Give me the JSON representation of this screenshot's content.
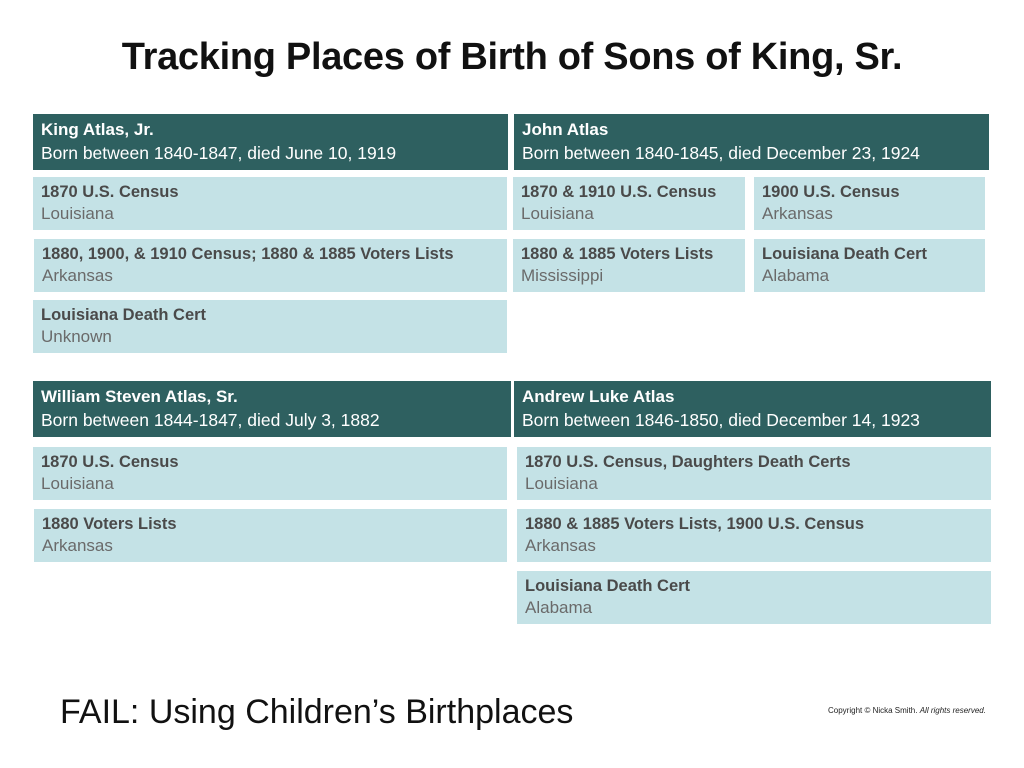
{
  "title": "Tracking Places of Birth of Sons of King, Sr.",
  "sons": [
    {
      "name": "King Atlas, Jr.",
      "born": "Born between 1840-1847, died June 10, 1919",
      "sources": [
        {
          "title": "1870 U.S. Census",
          "place": "Louisiana"
        },
        {
          "title": "1880, 1900, & 1910 Census; 1880 & 1885 Voters Lists",
          "place": "Arkansas"
        },
        {
          "title": "Louisiana Death Cert",
          "place": "Unknown"
        }
      ]
    },
    {
      "name": "John Atlas",
      "born": "Born between 1840-1845, died December 23, 1924",
      "sources": [
        {
          "title": "1870 & 1910 U.S. Census",
          "place": "Louisiana"
        },
        {
          "title": "1900 U.S. Census",
          "place": "Arkansas"
        },
        {
          "title": "1880 & 1885 Voters Lists",
          "place": "Mississippi"
        },
        {
          "title": "Louisiana Death Cert",
          "place": "Alabama"
        }
      ]
    },
    {
      "name": "William Steven Atlas, Sr.",
      "born": "Born between 1844-1847, died July 3, 1882",
      "sources": [
        {
          "title": "1870 U.S. Census",
          "place": "Louisiana"
        },
        {
          "title": "1880 Voters Lists",
          "place": "Arkansas"
        }
      ]
    },
    {
      "name": "Andrew Luke Atlas",
      "born": "Born between 1846-1850, died December 14, 1923",
      "sources": [
        {
          "title": "1870 U.S. Census, Daughters Death Certs",
          "place": "Louisiana"
        },
        {
          "title": "1880 & 1885 Voters Lists, 1900 U.S. Census",
          "place": "Arkansas"
        },
        {
          "title": "Louisiana Death Cert",
          "place": "Alabama"
        }
      ]
    }
  ],
  "footer": {
    "fail_text": "FAIL: Using Children’s Birthplaces",
    "copyright": "Copyright © Nicka Smith.",
    "rights": "All rights reserved."
  },
  "colors": {
    "header_bg": "#2e6060",
    "source_bg": "#c4e2e6"
  }
}
